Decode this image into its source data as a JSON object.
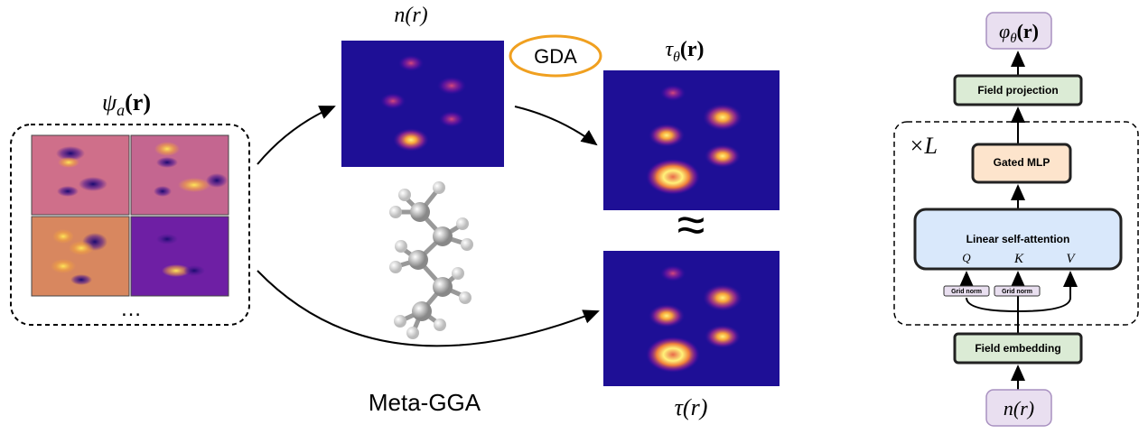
{
  "left_panel": {
    "orbital_label": {
      "symbol": "ψ",
      "subscript": "a",
      "arg": "(r)"
    },
    "ellipsis": "…",
    "density_label": "n(r)",
    "gda_label": "GDA",
    "predicted_label": {
      "symbol": "τ",
      "subscript": "θ",
      "arg": "(r)"
    },
    "approx": "≈",
    "target_label": "τ(r)",
    "method_label": "Meta-GGA"
  },
  "architecture": {
    "output": {
      "symbol": "φ",
      "subscript": "θ",
      "arg": "(r)"
    },
    "projection": "Field projection",
    "repeat": "×L",
    "mlp": "Gated MLP",
    "attention": "Linear self-attention",
    "qkv": [
      "Q",
      "K",
      "V"
    ],
    "norms": [
      "Grid norm",
      "Grid norm"
    ],
    "embedding": "Field embedding",
    "input": "n(r)"
  }
}
